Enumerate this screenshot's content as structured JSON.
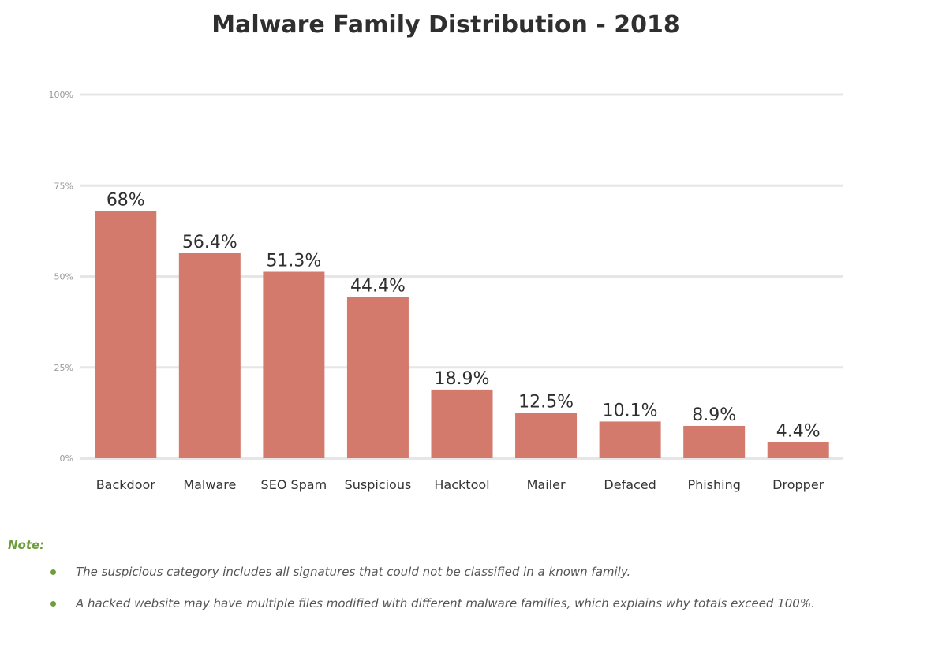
{
  "chart_data": {
    "type": "bar",
    "title": "Malware Family Distribution - 2018",
    "categories": [
      "Backdoor",
      "Malware",
      "SEO Spam",
      "Suspicious",
      "Hacktool",
      "Mailer",
      "Defaced",
      "Phishing",
      "Dropper"
    ],
    "values": [
      68,
      56.4,
      51.3,
      44.4,
      18.9,
      12.5,
      10.1,
      8.9,
      4.4
    ],
    "data_labels": [
      "68%",
      "56.4%",
      "51.3%",
      "44.4%",
      "18.9%",
      "12.5%",
      "10.1%",
      "8.9%",
      "4.4%"
    ],
    "yticks": [
      0,
      25,
      50,
      75,
      100
    ],
    "ytick_labels": [
      "0%",
      "25%",
      "50%",
      "75%",
      "100%"
    ],
    "ylim": [
      0,
      100
    ],
    "xlabel": "",
    "ylabel": "",
    "grid": true,
    "legend": "none",
    "bar_color": "#d47a6d",
    "grid_color": "#e6e6e6"
  },
  "note": {
    "heading": "Note:",
    "items": [
      "The suspicious category includes all signatures that could not be classified in a known family.",
      "A hacked website may have multiple files modified with different malware families, which explains why totals exceed 100%."
    ],
    "accent_color": "#6e9e3c"
  }
}
